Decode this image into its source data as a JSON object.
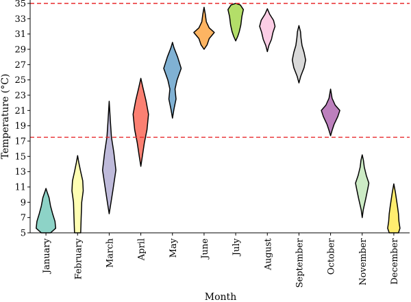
{
  "chart_data": {
    "type": "violin",
    "title": "",
    "xlabel": "Month",
    "ylabel": "Temperature (°C)",
    "ylim": [
      5,
      35
    ],
    "yticks": [
      5,
      7,
      9,
      11,
      13,
      15,
      17,
      19,
      21,
      23,
      25,
      27,
      29,
      31,
      33,
      35
    ],
    "grid": false,
    "reference_lines": [
      {
        "y": 35,
        "color": "#e8282b",
        "style": "dashed"
      },
      {
        "y": 17.5,
        "color": "#e8282b",
        "style": "dashed"
      }
    ],
    "categories": [
      "January",
      "February",
      "March",
      "April",
      "May",
      "June",
      "July",
      "August",
      "September",
      "October",
      "November",
      "December"
    ],
    "violins": [
      {
        "color": "#8dd3c7",
        "min": 5,
        "max": 10.8,
        "profile": [
          [
            5,
            0.45
          ],
          [
            5.6,
            0.95
          ],
          [
            6.5,
            0.88
          ],
          [
            7.5,
            0.65
          ],
          [
            8.5,
            0.45
          ],
          [
            9.6,
            0.3
          ],
          [
            10.3,
            0.12
          ],
          [
            10.8,
            0
          ]
        ]
      },
      {
        "color": "#ffffb3",
        "min": 5,
        "max": 15.1,
        "profile": [
          [
            5,
            0.3
          ],
          [
            7,
            0.35
          ],
          [
            9,
            0.4
          ],
          [
            10.5,
            0.55
          ],
          [
            11.8,
            0.5
          ],
          [
            13,
            0.3
          ],
          [
            14.2,
            0.12
          ],
          [
            15.1,
            0
          ]
        ]
      },
      {
        "color": "#bebada",
        "min": 7.5,
        "max": 22.2,
        "profile": [
          [
            7.5,
            0
          ],
          [
            8.5,
            0.12
          ],
          [
            10.5,
            0.35
          ],
          [
            13.2,
            0.65
          ],
          [
            15.5,
            0.45
          ],
          [
            17.5,
            0.22
          ],
          [
            19.5,
            0.12
          ],
          [
            22.2,
            0
          ]
        ]
      },
      {
        "color": "#fb8072",
        "min": 13.7,
        "max": 25.2,
        "profile": [
          [
            13.7,
            0
          ],
          [
            15,
            0.15
          ],
          [
            16.8,
            0.35
          ],
          [
            18.5,
            0.6
          ],
          [
            20.5,
            0.75
          ],
          [
            22.3,
            0.5
          ],
          [
            24,
            0.2
          ],
          [
            25.2,
            0
          ]
        ]
      },
      {
        "color": "#80b1d3",
        "min": 20,
        "max": 29.9,
        "profile": [
          [
            20,
            0
          ],
          [
            21.2,
            0.15
          ],
          [
            22.5,
            0.35
          ],
          [
            23.8,
            0.25
          ],
          [
            25,
            0.45
          ],
          [
            26.5,
            0.85
          ],
          [
            28,
            0.5
          ],
          [
            29.2,
            0.15
          ],
          [
            29.9,
            0
          ]
        ]
      },
      {
        "color": "#fdb462",
        "min": 29,
        "max": 34.5,
        "profile": [
          [
            29,
            0
          ],
          [
            29.6,
            0.3
          ],
          [
            30.4,
            0.5
          ],
          [
            31.2,
            1
          ],
          [
            31.8,
            0.5
          ],
          [
            32.6,
            0.22
          ],
          [
            33.6,
            0.12
          ],
          [
            34.5,
            0
          ]
        ]
      },
      {
        "color": "#b3de69",
        "min": 30.1,
        "max": 35,
        "profile": [
          [
            30.1,
            0
          ],
          [
            30.7,
            0.2
          ],
          [
            31.3,
            0.35
          ],
          [
            32.2,
            0.5
          ],
          [
            33.3,
            0.6
          ],
          [
            34.2,
            0.75
          ],
          [
            34.8,
            0.45
          ],
          [
            35,
            0
          ]
        ]
      },
      {
        "color": "#fccde5",
        "min": 28.7,
        "max": 34.3,
        "profile": [
          [
            28.7,
            0
          ],
          [
            29.5,
            0.15
          ],
          [
            30.3,
            0.4
          ],
          [
            31.2,
            0.55
          ],
          [
            32,
            0.75
          ],
          [
            32.8,
            0.6
          ],
          [
            33.6,
            0.22
          ],
          [
            34.3,
            0
          ]
        ]
      },
      {
        "color": "#d9d9d9",
        "min": 24.6,
        "max": 32.1,
        "profile": [
          [
            24.6,
            0
          ],
          [
            25.5,
            0.18
          ],
          [
            26.6,
            0.5
          ],
          [
            27.6,
            0.65
          ],
          [
            28.6,
            0.5
          ],
          [
            29.5,
            0.3
          ],
          [
            30.5,
            0.2
          ],
          [
            31.3,
            0.15
          ],
          [
            32.1,
            0
          ]
        ]
      },
      {
        "color": "#bc80bd",
        "min": 17.7,
        "max": 23.8,
        "profile": [
          [
            17.7,
            0
          ],
          [
            18.4,
            0.15
          ],
          [
            19.2,
            0.35
          ],
          [
            20.2,
            0.7
          ],
          [
            21,
            0.9
          ],
          [
            21.7,
            0.45
          ],
          [
            22.6,
            0.15
          ],
          [
            23.8,
            0
          ]
        ]
      },
      {
        "color": "#ccebc5",
        "min": 7,
        "max": 15.2,
        "profile": [
          [
            7,
            0
          ],
          [
            8,
            0.1
          ],
          [
            9.5,
            0.35
          ],
          [
            10.8,
            0.55
          ],
          [
            11.5,
            0.65
          ],
          [
            12.5,
            0.4
          ],
          [
            13.6,
            0.2
          ],
          [
            14.5,
            0.12
          ],
          [
            15.2,
            0
          ]
        ]
      },
      {
        "color": "#ffed6f",
        "min": 5,
        "max": 11.4,
        "profile": [
          [
            5,
            0.45
          ],
          [
            5.6,
            0.6
          ],
          [
            6.5,
            0.5
          ],
          [
            7.5,
            0.45
          ],
          [
            8.5,
            0.35
          ],
          [
            9.4,
            0.25
          ],
          [
            10.3,
            0.15
          ],
          [
            11.4,
            0
          ]
        ]
      }
    ]
  }
}
